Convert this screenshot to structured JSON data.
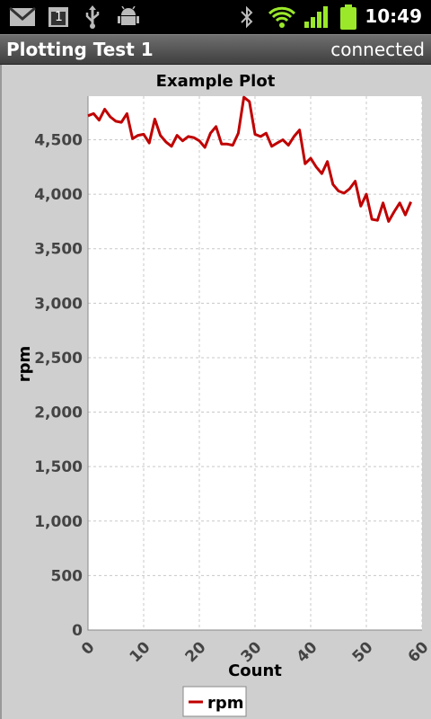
{
  "status_bar": {
    "time": "10:49",
    "icons": [
      "gmail-icon",
      "calendar-icon",
      "usb-icon",
      "android-debug-icon",
      "bluetooth-icon",
      "wifi-icon",
      "signal-icon",
      "battery-icon"
    ],
    "calendar_day": "1"
  },
  "app": {
    "title": "Plotting Test 1",
    "status": "connected"
  },
  "colors": {
    "series": "#c00000",
    "plot_bg": "#ffffff",
    "panel_bg": "#cfcfcf",
    "wifi": "#9be82a"
  },
  "chart_data": {
    "type": "line",
    "title": "Example Plot",
    "xlabel": "Count",
    "ylabel": "rpm",
    "xlim": [
      0,
      60
    ],
    "ylim": [
      0,
      4900
    ],
    "x_ticks": [
      "0",
      "10",
      "20",
      "30",
      "40",
      "50",
      "60"
    ],
    "y_ticks": [
      "0",
      "500",
      "1,000",
      "1,500",
      "2,000",
      "2,500",
      "3,000",
      "3,500",
      "4,000",
      "4,500"
    ],
    "grid": true,
    "legend": "bottom",
    "series": [
      {
        "name": "rpm",
        "x": [
          0,
          1,
          2,
          3,
          4,
          5,
          6,
          7,
          8,
          9,
          10,
          11,
          12,
          13,
          14,
          15,
          16,
          17,
          18,
          19,
          20,
          21,
          22,
          23,
          24,
          25,
          26,
          27,
          28,
          29,
          30,
          31,
          32,
          33,
          34,
          35,
          36,
          37,
          38,
          39,
          40,
          41,
          42,
          43,
          44,
          45,
          46,
          47,
          48,
          49,
          50,
          51,
          52,
          53,
          54,
          55,
          56,
          57,
          58
        ],
        "values": [
          4720,
          4740,
          4680,
          4780,
          4710,
          4670,
          4660,
          4740,
          4510,
          4540,
          4550,
          4470,
          4690,
          4540,
          4480,
          4440,
          4540,
          4490,
          4530,
          4520,
          4490,
          4430,
          4560,
          4620,
          4460,
          4460,
          4450,
          4560,
          4890,
          4850,
          4550,
          4530,
          4560,
          4440,
          4470,
          4500,
          4450,
          4530,
          4590,
          4280,
          4330,
          4250,
          4190,
          4300,
          4090,
          4030,
          4010,
          4050,
          4120,
          3890,
          4000,
          3770,
          3760,
          3920,
          3750,
          3840,
          3920,
          3810,
          3930
        ]
      }
    ]
  }
}
